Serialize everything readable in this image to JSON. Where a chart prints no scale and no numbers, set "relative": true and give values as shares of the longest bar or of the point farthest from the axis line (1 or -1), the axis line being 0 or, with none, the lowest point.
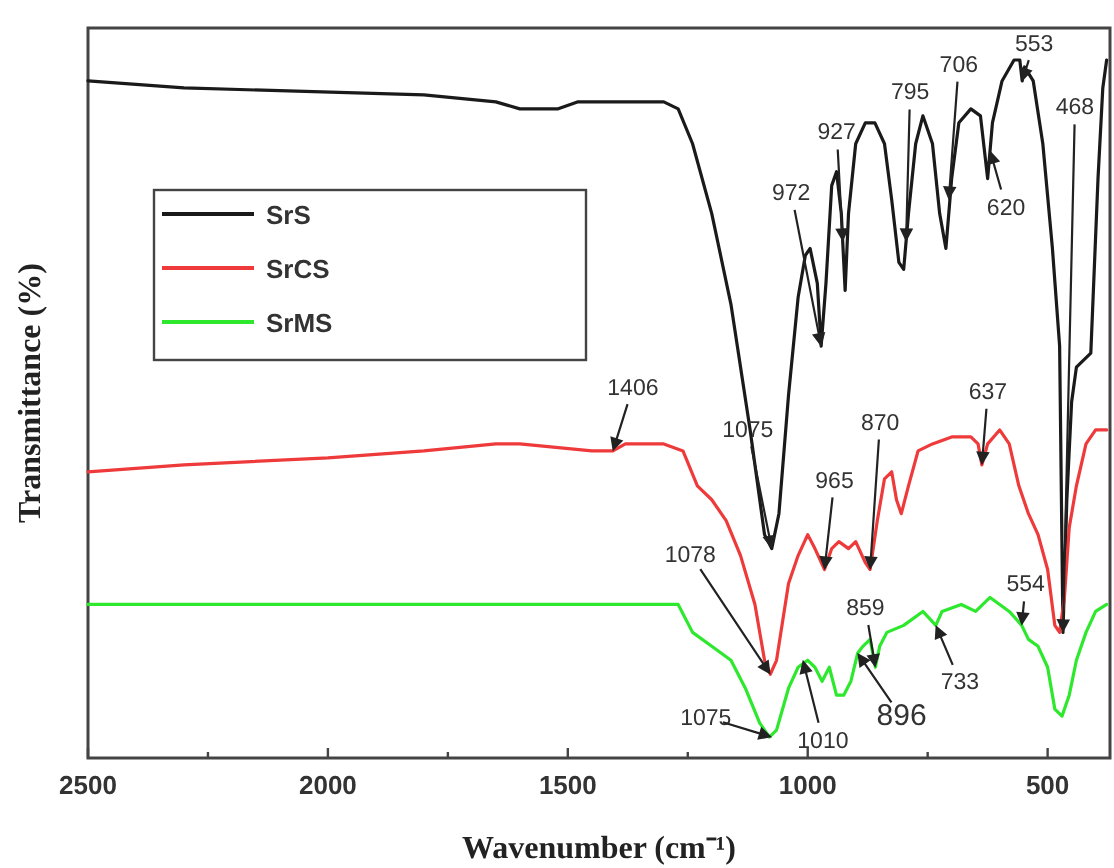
{
  "chart_data": {
    "type": "line",
    "relative": true,
    "xlabel": "Wavenumber (cm⁻¹)",
    "ylabel": "Transmittance (%)",
    "xlim": [
      2500,
      370
    ],
    "xticks": [
      2500,
      {
        "value": 2250,
        "label": null
      },
      2000,
      {
        "value": 1750,
        "label": null
      },
      1500,
      {
        "value": 1250,
        "label": null
      },
      1000,
      {
        "value": 750,
        "label": null
      },
      500
    ],
    "legend": "top left",
    "grid": false,
    "marker": "none",
    "line_style": "solid",
    "series": [
      {
        "name": "SrS",
        "color": "#1a1a1a",
        "x": [
          2500,
          2300,
          1800,
          1650,
          1600,
          1520,
          1480,
          1300,
          1270,
          1240,
          1200,
          1160,
          1120,
          1090,
          1075,
          1060,
          1040,
          1020,
          1005,
          995,
          980,
          972,
          962,
          950,
          940,
          930,
          922,
          915,
          900,
          880,
          860,
          840,
          825,
          810,
          800,
          790,
          775,
          760,
          740,
          725,
          712,
          700,
          685,
          660,
          640,
          625,
          615,
          595,
          570,
          558,
          553,
          548,
          530,
          510,
          490,
          475,
          468,
          460,
          450,
          440,
          425,
          410,
          395,
          385,
          377
        ],
        "values": [
          0.97,
          0.96,
          0.95,
          0.94,
          0.93,
          0.93,
          0.94,
          0.94,
          0.93,
          0.88,
          0.78,
          0.65,
          0.47,
          0.32,
          0.3,
          0.35,
          0.52,
          0.66,
          0.72,
          0.73,
          0.68,
          0.59,
          0.68,
          0.82,
          0.84,
          0.78,
          0.67,
          0.78,
          0.88,
          0.91,
          0.91,
          0.88,
          0.8,
          0.71,
          0.7,
          0.78,
          0.88,
          0.92,
          0.88,
          0.78,
          0.73,
          0.83,
          0.91,
          0.93,
          0.92,
          0.83,
          0.91,
          0.97,
          1.0,
          1.0,
          0.97,
          0.99,
          0.97,
          0.88,
          0.73,
          0.59,
          0.18,
          0.37,
          0.51,
          0.56,
          0.57,
          0.58,
          0.83,
          0.96,
          1.0
        ]
      },
      {
        "name": "SrCS",
        "color": "#ee3a3a",
        "x": [
          2500,
          2300,
          2000,
          1800,
          1650,
          1600,
          1450,
          1406,
          1380,
          1300,
          1260,
          1230,
          1200,
          1170,
          1140,
          1110,
          1090,
          1078,
          1065,
          1040,
          1020,
          1000,
          985,
          965,
          950,
          935,
          915,
          900,
          880,
          870,
          855,
          840,
          825,
          815,
          805,
          790,
          770,
          740,
          700,
          660,
          645,
          637,
          625,
          600,
          580,
          560,
          540,
          520,
          500,
          485,
          475,
          465,
          455,
          440,
          420,
          400,
          377
        ],
        "values": [
          0.41,
          0.42,
          0.43,
          0.44,
          0.45,
          0.45,
          0.44,
          0.44,
          0.45,
          0.45,
          0.44,
          0.39,
          0.37,
          0.34,
          0.29,
          0.22,
          0.14,
          0.12,
          0.14,
          0.25,
          0.29,
          0.32,
          0.3,
          0.27,
          0.3,
          0.31,
          0.3,
          0.31,
          0.28,
          0.27,
          0.34,
          0.4,
          0.41,
          0.37,
          0.35,
          0.39,
          0.44,
          0.45,
          0.46,
          0.46,
          0.45,
          0.42,
          0.45,
          0.47,
          0.45,
          0.39,
          0.35,
          0.32,
          0.27,
          0.19,
          0.18,
          0.23,
          0.33,
          0.39,
          0.45,
          0.47,
          0.47
        ]
      },
      {
        "name": "SrMS",
        "color": "#2ee82e",
        "x": [
          2500,
          1300,
          1270,
          1240,
          1200,
          1160,
          1130,
          1100,
          1080,
          1065,
          1040,
          1020,
          1000,
          985,
          970,
          955,
          940,
          925,
          910,
          896,
          885,
          870,
          859,
          850,
          835,
          800,
          760,
          733,
          720,
          680,
          650,
          620,
          600,
          580,
          554,
          540,
          520,
          500,
          485,
          470,
          455,
          440,
          420,
          400,
          377
        ],
        "values": [
          0.22,
          0.22,
          0.22,
          0.18,
          0.16,
          0.14,
          0.1,
          0.05,
          0.03,
          0.04,
          0.1,
          0.13,
          0.14,
          0.13,
          0.11,
          0.13,
          0.09,
          0.09,
          0.11,
          0.15,
          0.16,
          0.17,
          0.13,
          0.16,
          0.18,
          0.19,
          0.21,
          0.19,
          0.21,
          0.22,
          0.21,
          0.23,
          0.22,
          0.21,
          0.19,
          0.17,
          0.16,
          0.13,
          0.07,
          0.06,
          0.09,
          0.14,
          0.18,
          0.21,
          0.22
        ]
      }
    ],
    "annotations": [
      {
        "text": "1075",
        "x": 1075,
        "y": 0.3
      },
      {
        "text": "972",
        "x": 972,
        "y": 0.59
      },
      {
        "text": "927",
        "x": 927,
        "y": 0.74
      },
      {
        "text": "795",
        "x": 795,
        "y": 0.74
      },
      {
        "text": "706",
        "x": 706,
        "y": 0.8
      },
      {
        "text": "620",
        "x": 620,
        "y": 0.87
      },
      {
        "text": "553",
        "x": 553,
        "y": 0.97
      },
      {
        "text": "468",
        "x": 468,
        "y": 0.18
      },
      {
        "text": "1406",
        "x": 1406,
        "y": 0.44
      },
      {
        "text": "1078",
        "x": 1078,
        "y": 0.12
      },
      {
        "text": "965",
        "x": 965,
        "y": 0.27
      },
      {
        "text": "870",
        "x": 870,
        "y": 0.27
      },
      {
        "text": "637",
        "x": 637,
        "y": 0.42
      },
      {
        "text": "859",
        "x": 859,
        "y": 0.13
      },
      {
        "text": "554",
        "x": 554,
        "y": 0.19
      },
      {
        "text": "733",
        "x": 733,
        "y": 0.19
      },
      {
        "text": "896",
        "x": 896,
        "y": 0.15
      },
      {
        "text": "1010",
        "x": 1010,
        "y": 0.14
      },
      {
        "text": "1075",
        "x": 1075,
        "y": 0.03
      }
    ]
  }
}
